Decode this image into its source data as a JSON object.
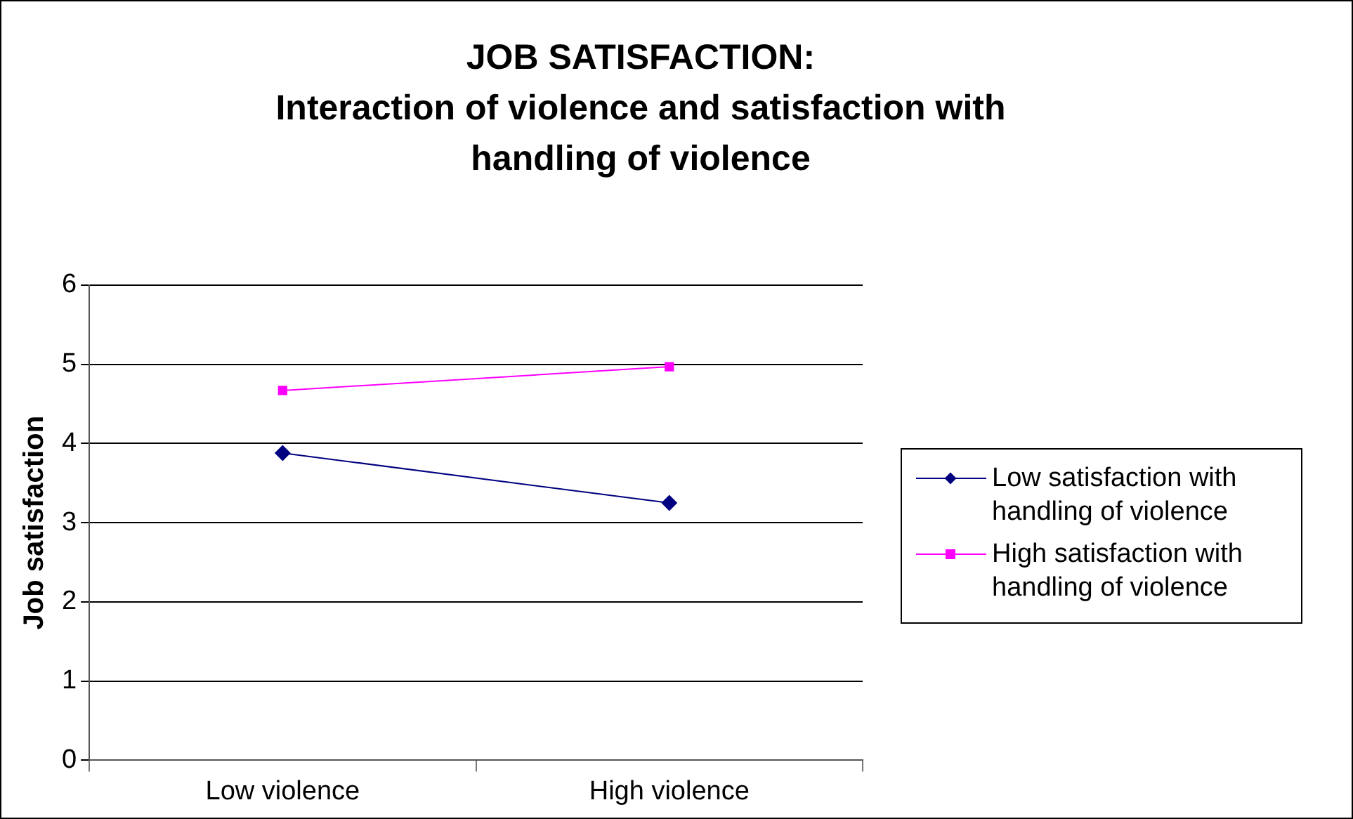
{
  "chart_data": {
    "type": "line",
    "title": "JOB SATISFACTION:\nInteraction of violence and satisfaction with\nhandling of violence",
    "ylabel": "Job satisfaction",
    "categories": [
      "Low violence",
      "High violence"
    ],
    "series": [
      {
        "name": "Low satisfaction with handling of violence",
        "color": "#000080",
        "marker": "diamond",
        "values": [
          3.88,
          3.25
        ]
      },
      {
        "name": "High satisfaction with handling of violence",
        "color": "#ff00ff",
        "marker": "square",
        "values": [
          4.67,
          4.97
        ]
      }
    ],
    "ylim": [
      0,
      6
    ],
    "yticks": [
      0,
      1,
      2,
      3,
      4,
      5,
      6
    ],
    "grid": "y",
    "legend": "right",
    "line_style": "solid"
  }
}
